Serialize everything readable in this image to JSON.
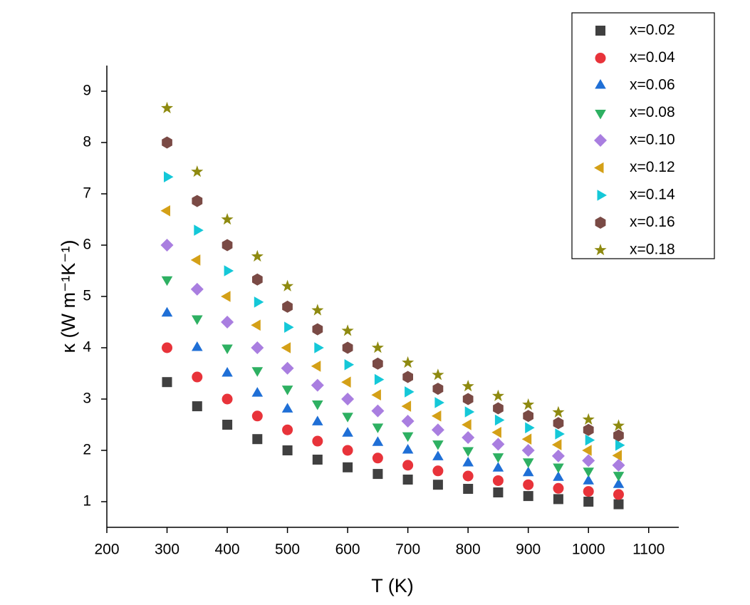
{
  "chart_data": {
    "type": "scatter",
    "x_label": "T (K)",
    "y_label": "κ (W m⁻¹K⁻¹)",
    "x": [
      300,
      350,
      400,
      450,
      500,
      550,
      600,
      650,
      700,
      750,
      800,
      850,
      900,
      950,
      1000,
      1050
    ],
    "xlim": [
      200,
      1150
    ],
    "xticks": [
      200,
      300,
      400,
      500,
      600,
      700,
      800,
      900,
      1000,
      1100
    ],
    "ylim": [
      0.5,
      9.5
    ],
    "yticks": [
      1,
      2,
      3,
      4,
      5,
      6,
      7,
      8,
      9
    ],
    "legend": "upper-right",
    "series": [
      {
        "name": "x=0.02",
        "color": "#404040",
        "marker": "square",
        "values": [
          3.33,
          2.86,
          2.5,
          2.22,
          2.0,
          1.82,
          1.67,
          1.54,
          1.43,
          1.33,
          1.25,
          1.18,
          1.11,
          1.05,
          1.0,
          0.95
        ]
      },
      {
        "name": "x=0.04",
        "color": "#e8333a",
        "marker": "circle",
        "values": [
          4.0,
          3.43,
          3.0,
          2.67,
          2.4,
          2.18,
          2.0,
          1.85,
          1.71,
          1.6,
          1.5,
          1.41,
          1.33,
          1.26,
          1.2,
          1.14
        ]
      },
      {
        "name": "x=0.06",
        "color": "#1f6fd6",
        "marker": "triangle-up",
        "values": [
          4.67,
          4.0,
          3.5,
          3.11,
          2.8,
          2.55,
          2.33,
          2.15,
          2.0,
          1.87,
          1.75,
          1.65,
          1.56,
          1.47,
          1.4,
          1.33
        ]
      },
      {
        "name": "x=0.08",
        "color": "#2eb062",
        "marker": "triangle-down",
        "values": [
          5.33,
          4.57,
          4.0,
          3.56,
          3.2,
          2.91,
          2.67,
          2.46,
          2.29,
          2.13,
          2.0,
          1.88,
          1.78,
          1.68,
          1.6,
          1.52
        ]
      },
      {
        "name": "x=0.10",
        "color": "#a97ee0",
        "marker": "diamond",
        "values": [
          6.0,
          5.14,
          4.5,
          4.0,
          3.6,
          3.27,
          3.0,
          2.77,
          2.57,
          2.4,
          2.25,
          2.12,
          2.0,
          1.89,
          1.8,
          1.71
        ]
      },
      {
        "name": "x=0.12",
        "color": "#d4a017",
        "marker": "triangle-left",
        "values": [
          6.67,
          5.71,
          5.0,
          4.44,
          4.0,
          3.64,
          3.33,
          3.08,
          2.86,
          2.67,
          2.5,
          2.35,
          2.22,
          2.11,
          2.0,
          1.9
        ]
      },
      {
        "name": "x=0.14",
        "color": "#14c8d8",
        "marker": "triangle-right",
        "values": [
          7.33,
          6.29,
          5.5,
          4.89,
          4.4,
          4.0,
          3.67,
          3.38,
          3.14,
          2.93,
          2.75,
          2.59,
          2.44,
          2.32,
          2.2,
          2.1
        ]
      },
      {
        "name": "x=0.16",
        "color": "#7a4a45",
        "marker": "hexagon",
        "values": [
          8.0,
          6.86,
          6.0,
          5.33,
          4.8,
          4.36,
          4.0,
          3.69,
          3.43,
          3.2,
          3.0,
          2.82,
          2.67,
          2.53,
          2.4,
          2.29
        ]
      },
      {
        "name": "x=0.18",
        "color": "#8e8a10",
        "marker": "star",
        "values": [
          8.67,
          7.43,
          6.5,
          5.78,
          5.2,
          4.73,
          4.33,
          4.0,
          3.71,
          3.47,
          3.25,
          3.06,
          2.89,
          2.74,
          2.6,
          2.48
        ]
      }
    ]
  }
}
